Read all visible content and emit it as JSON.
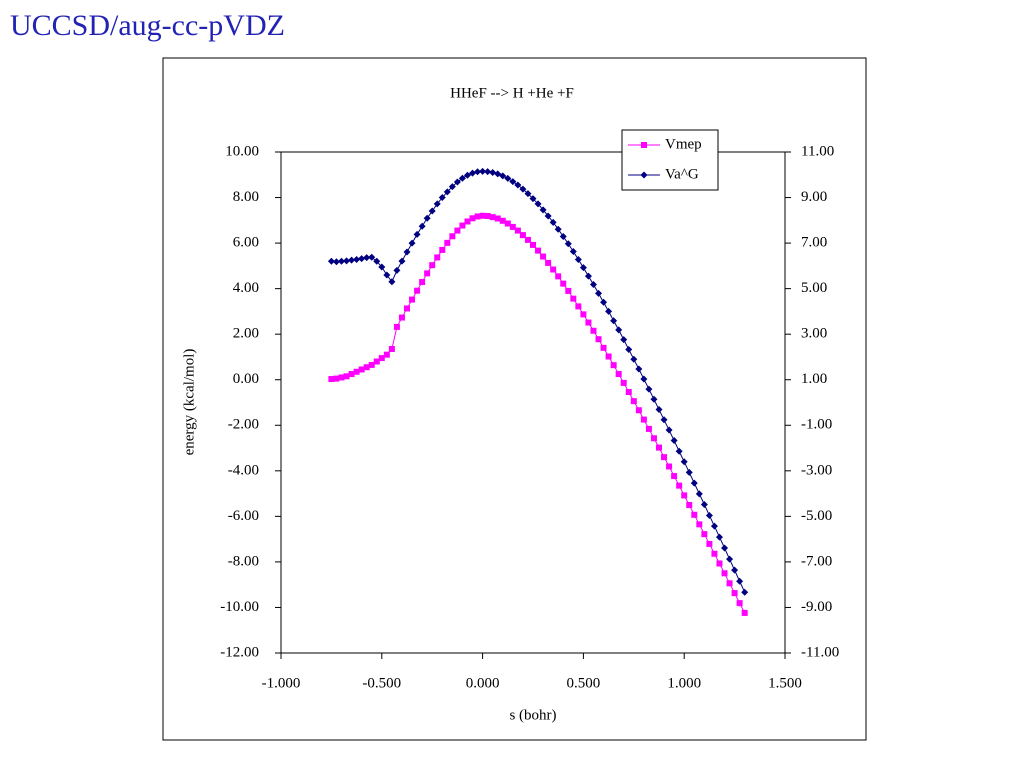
{
  "slide": {
    "title": "UCCSD/aug-cc-pVDZ"
  },
  "chart_data": {
    "type": "line",
    "title": "HHeF --> H +He +F",
    "xlabel": "s (bohr)",
    "ylabel": "energy (kcal/mol)",
    "x": [
      -0.75,
      -0.725,
      -0.7,
      -0.675,
      -0.65,
      -0.625,
      -0.6,
      -0.575,
      -0.55,
      -0.525,
      -0.5,
      -0.475,
      -0.45,
      -0.425,
      -0.4,
      -0.375,
      -0.35,
      -0.325,
      -0.3,
      -0.275,
      -0.25,
      -0.225,
      -0.2,
      -0.175,
      -0.15,
      -0.125,
      -0.1,
      -0.075,
      -0.05,
      -0.025,
      0,
      0.025,
      0.05,
      0.075,
      0.1,
      0.125,
      0.15,
      0.175,
      0.2,
      0.225,
      0.25,
      0.275,
      0.3,
      0.325,
      0.35,
      0.375,
      0.4,
      0.425,
      0.45,
      0.475,
      0.5,
      0.525,
      0.55,
      0.575,
      0.6,
      0.625,
      0.65,
      0.675,
      0.7,
      0.725,
      0.75,
      0.775,
      0.8,
      0.825,
      0.85,
      0.875,
      0.9,
      0.925,
      0.95,
      0.975,
      1.0,
      1.025,
      1.05,
      1.075,
      1.1,
      1.125,
      1.15,
      1.175,
      1.2,
      1.225,
      1.25,
      1.275,
      1.3
    ],
    "series": [
      {
        "name": "Vmep",
        "color": "#ff00ff",
        "marker": "square",
        "values": [
          0.03,
          0.05,
          0.1,
          0.15,
          0.25,
          0.35,
          0.45,
          0.55,
          0.65,
          0.8,
          0.95,
          1.1,
          1.35,
          2.32,
          2.73,
          3.13,
          3.52,
          3.91,
          4.29,
          4.67,
          5.03,
          5.37,
          5.7,
          6.01,
          6.3,
          6.55,
          6.77,
          6.95,
          7.09,
          7.17,
          7.2,
          7.19,
          7.14,
          7.08,
          6.98,
          6.86,
          6.71,
          6.55,
          6.35,
          6.14,
          5.92,
          5.67,
          5.41,
          5.13,
          4.84,
          4.54,
          4.22,
          3.9,
          3.56,
          3.22,
          2.87,
          2.51,
          2.15,
          1.78,
          1.4,
          1.02,
          0.64,
          0.25,
          -0.14,
          -0.54,
          -0.94,
          -1.34,
          -1.75,
          -2.16,
          -2.57,
          -2.98,
          -3.4,
          -3.81,
          -4.23,
          -4.65,
          -5.08,
          -5.5,
          -5.93,
          -6.35,
          -6.78,
          -7.21,
          -7.64,
          -8.07,
          -8.5,
          -8.94,
          -9.37,
          -9.81,
          -10.24
        ]
      },
      {
        "name": "Va^G",
        "color": "#000080",
        "marker": "diamond",
        "values": [
          5.2,
          5.18,
          5.2,
          5.22,
          5.25,
          5.28,
          5.32,
          5.36,
          5.38,
          5.2,
          4.95,
          4.6,
          4.3,
          4.8,
          5.21,
          5.61,
          6.0,
          6.38,
          6.74,
          7.09,
          7.41,
          7.72,
          8.0,
          8.25,
          8.48,
          8.68,
          8.85,
          8.98,
          9.07,
          9.13,
          9.15,
          9.14,
          9.1,
          9.04,
          8.95,
          8.84,
          8.7,
          8.55,
          8.37,
          8.17,
          7.95,
          7.72,
          7.46,
          7.19,
          6.91,
          6.61,
          6.29,
          5.97,
          5.63,
          5.28,
          4.92,
          4.55,
          4.18,
          3.79,
          3.4,
          3.0,
          2.59,
          2.19,
          1.76,
          1.33,
          0.9,
          0.47,
          0.03,
          -0.41,
          -0.86,
          -1.31,
          -1.76,
          -2.21,
          -2.67,
          -3.14,
          -3.6,
          -4.07,
          -4.54,
          -5.01,
          -5.48,
          -5.96,
          -6.43,
          -6.91,
          -7.39,
          -7.88,
          -8.36,
          -8.85,
          -9.33
        ]
      }
    ],
    "xlim": [
      -1,
      1.5
    ],
    "xticks": [
      {
        "value": -1,
        "label": "-1.000"
      },
      {
        "value": -0.5,
        "label": "-0.500"
      },
      {
        "value": 0,
        "label": "0.000"
      },
      {
        "value": 0.5,
        "label": "0.500"
      },
      {
        "value": 1,
        "label": "1.000"
      },
      {
        "value": 1.5,
        "label": "1.500"
      }
    ],
    "ylim": [
      -12,
      10
    ],
    "yticks": [
      {
        "value": -12,
        "label": "-12.00"
      },
      {
        "value": -10,
        "label": "-10.00"
      },
      {
        "value": -8,
        "label": "-8.00"
      },
      {
        "value": -6,
        "label": "-6.00"
      },
      {
        "value": -4,
        "label": "-4.00"
      },
      {
        "value": -2,
        "label": "-2.00"
      },
      {
        "value": 0,
        "label": "0.00"
      },
      {
        "value": 2,
        "label": "2.00"
      },
      {
        "value": 4,
        "label": "4.00"
      },
      {
        "value": 6,
        "label": "6.00"
      },
      {
        "value": 8,
        "label": "8.00"
      },
      {
        "value": 10,
        "label": "10.00"
      }
    ],
    "y2lim": [
      -11,
      11
    ],
    "y2ticks": [
      {
        "value": -11,
        "label": "-11.00"
      },
      {
        "value": -9,
        "label": "-9.00"
      },
      {
        "value": -7,
        "label": "-7.00"
      },
      {
        "value": -5,
        "label": "-5.00"
      },
      {
        "value": -3,
        "label": "-3.00"
      },
      {
        "value": -1,
        "label": "-1.00"
      },
      {
        "value": 1,
        "label": "1.00"
      },
      {
        "value": 3,
        "label": "3.00"
      },
      {
        "value": 5,
        "label": "5.00"
      },
      {
        "value": 7,
        "label": "7.00"
      },
      {
        "value": 9,
        "label": "9.00"
      },
      {
        "value": 11,
        "label": "11.00"
      }
    ],
    "grid": false,
    "legend": "top-right"
  }
}
